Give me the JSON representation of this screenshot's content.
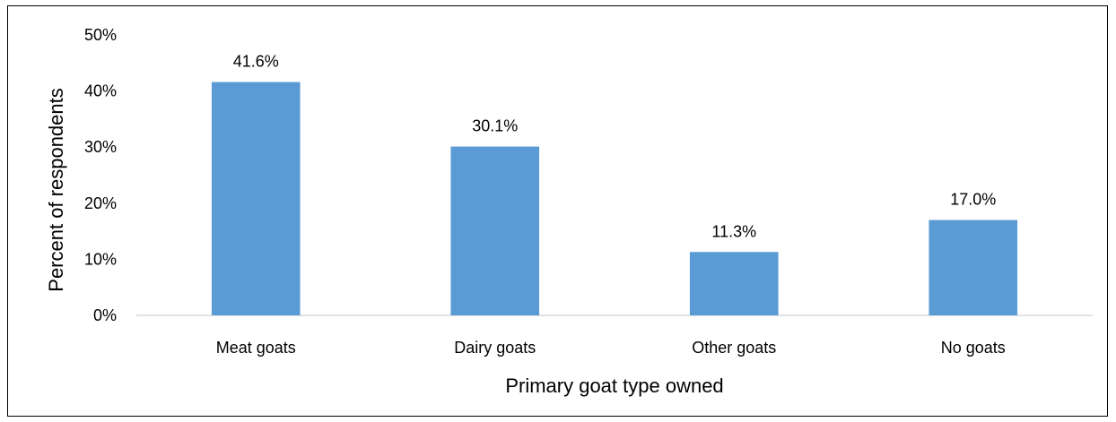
{
  "chart_data": {
    "type": "bar",
    "title": "",
    "xlabel": "Primary goat type owned",
    "ylabel": "Percent of respondents",
    "categories": [
      "Meat goats",
      "Dairy goats",
      "Other goats",
      "No goats"
    ],
    "values": [
      41.6,
      30.1,
      11.3,
      17.0
    ],
    "data_labels": [
      "41.6%",
      "30.1%",
      "11.3%",
      "17.0%"
    ],
    "ylim": [
      0,
      50
    ],
    "yticks": [
      0,
      10,
      20,
      30,
      40,
      50
    ],
    "ytick_labels": [
      "0%",
      "10%",
      "20%",
      "30%",
      "40%",
      "50%"
    ],
    "grid": false,
    "legend": "none",
    "bar_color": "#5b9bd5"
  }
}
